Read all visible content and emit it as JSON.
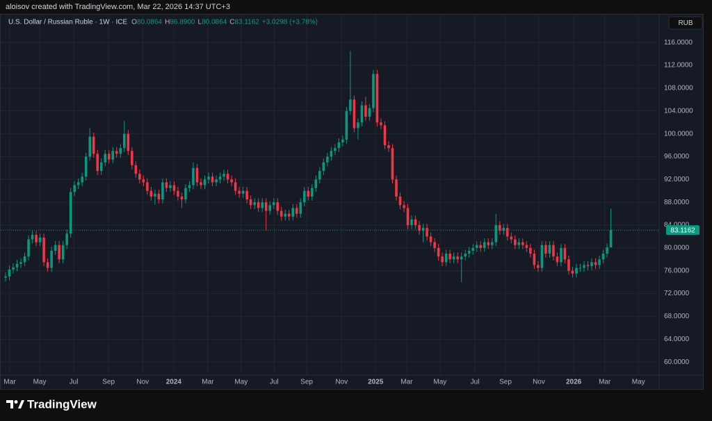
{
  "credit": "aloisov created with TradingView.com, Mar 22, 2026 14:37 UTC+3",
  "brand": "TradingView",
  "chart_data": {
    "type": "candlestick",
    "header": {
      "symbol": "U.S. Dollar / Russian Ruble · 1W · ICE",
      "ohlc": [
        {
          "key": "O",
          "value": "80.0864"
        },
        {
          "key": "H",
          "value": "86.8900"
        },
        {
          "key": "L",
          "value": "80.0864"
        },
        {
          "key": "C",
          "value": "83.1162"
        }
      ],
      "change": "+3.0298 (+3.78%)"
    },
    "currency": "RUB",
    "up_color": "#089981",
    "down_color": "#f23645",
    "grid": true,
    "open": [
      74.8,
      75.0,
      76.2,
      76.6,
      77.2,
      77.5,
      78.5,
      81.5,
      82.3,
      81.0,
      81.8,
      77.5,
      76.5,
      79.5,
      80.5,
      78.0,
      80.5,
      82.5,
      89.8,
      91.0,
      91.5,
      92.5,
      96.0,
      99.5,
      96.5,
      93.5,
      95.0,
      96.5,
      95.5,
      97.0,
      96.5,
      97.5,
      100.0,
      97.0,
      94.5,
      93.0,
      92.0,
      91.5,
      90.0,
      89.0,
      89.5,
      88.5,
      91.5,
      90.5,
      91.0,
      90.0,
      89.0,
      88.5,
      90.5,
      91.0,
      94.0,
      91.5,
      91.0,
      92.0,
      92.5,
      91.5,
      92.0,
      92.5,
      93.0,
      92.0,
      91.5,
      90.0,
      89.5,
      90.0,
      88.5,
      87.5,
      88.0,
      87.0,
      88.0,
      86.5,
      87.5,
      88.0,
      86.5,
      85.5,
      86.0,
      85.5,
      87.0,
      86.0,
      88.0,
      90.0,
      89.0,
      90.5,
      92.0,
      93.5,
      95.0,
      96.0,
      97.0,
      97.5,
      98.5,
      99.0,
      104.0,
      106.0,
      101.0,
      102.0,
      105.0,
      103.0,
      104.5,
      110.5,
      102.0,
      101.5,
      98.0,
      97.5,
      92.0,
      89.0,
      87.5,
      87.0,
      84.0,
      85.0,
      84.0,
      83.0,
      83.5,
      82.0,
      81.0,
      80.0,
      78.5,
      77.5,
      79.0,
      78.0,
      78.5,
      78.0,
      78.5,
      79.0,
      79.5,
      80.0,
      80.5,
      80.0,
      81.0,
      80.5,
      81.0,
      84.0,
      83.0,
      83.5,
      82.0,
      81.5,
      80.5,
      81.0,
      80.5,
      80.0,
      79.0,
      77.0,
      76.5,
      80.5,
      79.0,
      80.5,
      78.5,
      77.5,
      80.0,
      78.0,
      76.0,
      75.5,
      76.5,
      76.5,
      77.0,
      76.8,
      77.5,
      77.0,
      78.0,
      79.0,
      80.0864
    ],
    "high": [
      75.7,
      76.9,
      77.3,
      77.9,
      78.2,
      79.2,
      82.2,
      83.0,
      83.0,
      82.5,
      82.5,
      78.2,
      80.2,
      81.2,
      81.2,
      81.2,
      83.2,
      90.5,
      91.7,
      92.2,
      93.2,
      96.7,
      101.0,
      100.2,
      97.2,
      95.7,
      97.2,
      97.2,
      97.7,
      97.7,
      98.2,
      102.3,
      100.7,
      97.7,
      95.2,
      93.7,
      92.7,
      92.2,
      90.7,
      90.2,
      90.2,
      92.2,
      92.2,
      91.7,
      91.7,
      90.7,
      89.7,
      91.2,
      91.7,
      95.0,
      94.7,
      92.2,
      92.7,
      93.2,
      93.2,
      92.7,
      93.2,
      93.7,
      93.7,
      92.7,
      92.2,
      90.7,
      90.7,
      90.7,
      89.2,
      88.7,
      88.7,
      88.7,
      88.7,
      88.2,
      88.7,
      88.7,
      87.2,
      86.7,
      86.7,
      87.7,
      87.7,
      88.7,
      90.7,
      90.7,
      91.2,
      92.7,
      94.2,
      95.7,
      96.7,
      97.7,
      98.2,
      99.2,
      99.7,
      104.7,
      114.5,
      106.7,
      102.7,
      105.7,
      106.5,
      105.2,
      111.2,
      111.2,
      102.7,
      102.2,
      98.7,
      98.2,
      92.7,
      89.7,
      88.2,
      87.7,
      85.7,
      85.7,
      84.7,
      84.2,
      84.2,
      82.7,
      81.7,
      80.7,
      79.2,
      79.7,
      79.7,
      79.2,
      79.2,
      79.2,
      79.7,
      80.2,
      80.7,
      81.2,
      81.2,
      81.7,
      81.7,
      81.7,
      86.0,
      84.7,
      84.2,
      84.2,
      82.7,
      82.2,
      81.7,
      81.7,
      81.2,
      80.7,
      79.7,
      77.7,
      81.2,
      81.2,
      81.2,
      81.2,
      79.2,
      80.7,
      80.7,
      78.7,
      76.7,
      77.2,
      77.2,
      77.7,
      77.7,
      78.2,
      78.2,
      78.7,
      79.7,
      80.8,
      86.89
    ],
    "low": [
      74.1,
      74.3,
      75.5,
      75.9,
      76.5,
      76.8,
      77.8,
      80.8,
      80.3,
      80.3,
      76.8,
      75.8,
      75.8,
      78.8,
      77.3,
      77.3,
      79.8,
      81.8,
      89.1,
      90.3,
      90.8,
      91.8,
      95.3,
      95.8,
      92.8,
      92.8,
      94.3,
      94.8,
      94.8,
      95.8,
      95.8,
      96.8,
      96.3,
      93.8,
      92.3,
      91.3,
      90.8,
      89.3,
      88.3,
      87.6,
      87.8,
      87.8,
      89.8,
      89.8,
      89.3,
      88.3,
      87.0,
      87.8,
      89.8,
      90.3,
      90.8,
      90.3,
      90.3,
      91.3,
      90.8,
      90.8,
      91.3,
      91.8,
      91.3,
      90.8,
      89.3,
      88.8,
      88.8,
      87.8,
      86.8,
      86.8,
      86.3,
      86.3,
      83.0,
      85.8,
      86.8,
      85.8,
      84.8,
      84.8,
      84.8,
      84.8,
      85.3,
      85.3,
      87.3,
      88.3,
      88.3,
      89.8,
      91.3,
      92.8,
      94.3,
      95.3,
      96.3,
      96.8,
      97.8,
      98.3,
      103.3,
      100.3,
      99.0,
      101.3,
      102.3,
      102.3,
      103.8,
      101.3,
      100.8,
      97.3,
      96.8,
      91.3,
      88.3,
      86.8,
      86.3,
      83.3,
      83.3,
      83.3,
      82.3,
      81.0,
      81.3,
      80.3,
      79.3,
      77.8,
      76.8,
      76.8,
      77.3,
      77.3,
      77.3,
      74.0,
      77.8,
      78.3,
      78.8,
      79.3,
      79.3,
      79.3,
      79.8,
      79.8,
      80.3,
      82.3,
      82.3,
      81.3,
      80.8,
      79.8,
      79.8,
      79.8,
      79.3,
      78.3,
      76.3,
      75.8,
      75.8,
      78.3,
      78.3,
      77.8,
      76.8,
      76.8,
      77.3,
      75.3,
      74.8,
      74.8,
      75.8,
      75.8,
      76.1,
      76.1,
      76.3,
      76.3,
      77.3,
      78.3,
      80.0864
    ],
    "close": [
      75.0,
      76.2,
      76.6,
      77.2,
      77.5,
      78.5,
      81.5,
      82.3,
      81.0,
      81.8,
      77.5,
      76.5,
      79.5,
      80.5,
      78.0,
      80.5,
      82.5,
      89.8,
      91.0,
      91.5,
      92.5,
      96.0,
      99.5,
      96.5,
      93.5,
      95.0,
      96.5,
      95.5,
      97.0,
      96.5,
      97.5,
      100.0,
      97.0,
      94.5,
      93.0,
      92.0,
      91.5,
      90.0,
      89.0,
      89.5,
      88.5,
      91.5,
      90.5,
      91.0,
      90.0,
      89.0,
      88.5,
      90.5,
      91.0,
      94.0,
      91.5,
      91.0,
      92.0,
      92.5,
      91.5,
      92.0,
      92.5,
      93.0,
      92.0,
      91.5,
      90.0,
      89.5,
      90.0,
      88.5,
      87.5,
      88.0,
      87.0,
      88.0,
      86.5,
      87.5,
      88.0,
      86.5,
      85.5,
      86.0,
      85.5,
      87.0,
      86.0,
      88.0,
      90.0,
      89.0,
      90.5,
      92.0,
      93.5,
      95.0,
      96.0,
      97.0,
      97.5,
      98.5,
      99.0,
      104.0,
      106.0,
      101.0,
      102.0,
      105.0,
      103.0,
      104.5,
      110.5,
      102.0,
      101.5,
      98.0,
      97.5,
      92.0,
      89.0,
      87.5,
      87.0,
      84.0,
      85.0,
      84.0,
      83.0,
      83.5,
      82.0,
      81.0,
      80.0,
      78.5,
      77.5,
      79.0,
      78.0,
      78.5,
      78.0,
      78.5,
      79.0,
      79.5,
      80.0,
      80.5,
      80.0,
      81.0,
      80.5,
      81.0,
      84.0,
      83.0,
      83.5,
      82.0,
      81.5,
      80.5,
      81.0,
      80.5,
      80.0,
      79.0,
      77.0,
      76.5,
      80.5,
      79.0,
      80.5,
      78.5,
      77.5,
      80.0,
      78.0,
      76.0,
      75.5,
      76.5,
      76.5,
      77.0,
      76.8,
      77.5,
      77.0,
      78.0,
      79.0,
      80.0864,
      83.1162
    ],
    "xlim": [
      -1.45,
      170.6
    ],
    "xticks": [
      {
        "value": 1.1,
        "label": "Mar"
      },
      {
        "value": 8.9,
        "label": "May"
      },
      {
        "value": 17.8,
        "label": "Jul"
      },
      {
        "value": 26.9,
        "label": "Sep"
      },
      {
        "value": 35.8,
        "label": "Nov"
      },
      {
        "value": 43.9,
        "label": "2024"
      },
      {
        "value": 52.8,
        "label": "Mar"
      },
      {
        "value": 61.5,
        "label": "May"
      },
      {
        "value": 70.1,
        "label": "Jul"
      },
      {
        "value": 78.6,
        "label": "Sep"
      },
      {
        "value": 87.7,
        "label": "Nov"
      },
      {
        "value": 96.6,
        "label": "2025"
      },
      {
        "value": 104.7,
        "label": "Mar"
      },
      {
        "value": 113.4,
        "label": "May"
      },
      {
        "value": 122.5,
        "label": "Jul"
      },
      {
        "value": 130.5,
        "label": "Sep"
      },
      {
        "value": 139.2,
        "label": "Nov"
      },
      {
        "value": 148.3,
        "label": "2026"
      },
      {
        "value": 156.4,
        "label": "Mar"
      },
      {
        "value": 165.2,
        "label": "May"
      }
    ],
    "ylim": [
      57.7,
      120.9
    ],
    "yticks": [
      {
        "value": 60,
        "label": "60.0000"
      },
      {
        "value": 64,
        "label": "64.0000"
      },
      {
        "value": 68,
        "label": "68.0000"
      },
      {
        "value": 72,
        "label": "72.0000"
      },
      {
        "value": 76,
        "label": "76.0000"
      },
      {
        "value": 80,
        "label": "80.0000"
      },
      {
        "value": 84,
        "label": "84.0000"
      },
      {
        "value": 88,
        "label": "88.0000"
      },
      {
        "value": 92,
        "label": "92.0000"
      },
      {
        "value": 96,
        "label": "96.0000"
      },
      {
        "value": 100,
        "label": "100.0000"
      },
      {
        "value": 104,
        "label": "104.0000"
      },
      {
        "value": 108,
        "label": "108.0000"
      },
      {
        "value": 112,
        "label": "112.0000"
      },
      {
        "value": 116,
        "label": "116.0000"
      }
    ]
  }
}
